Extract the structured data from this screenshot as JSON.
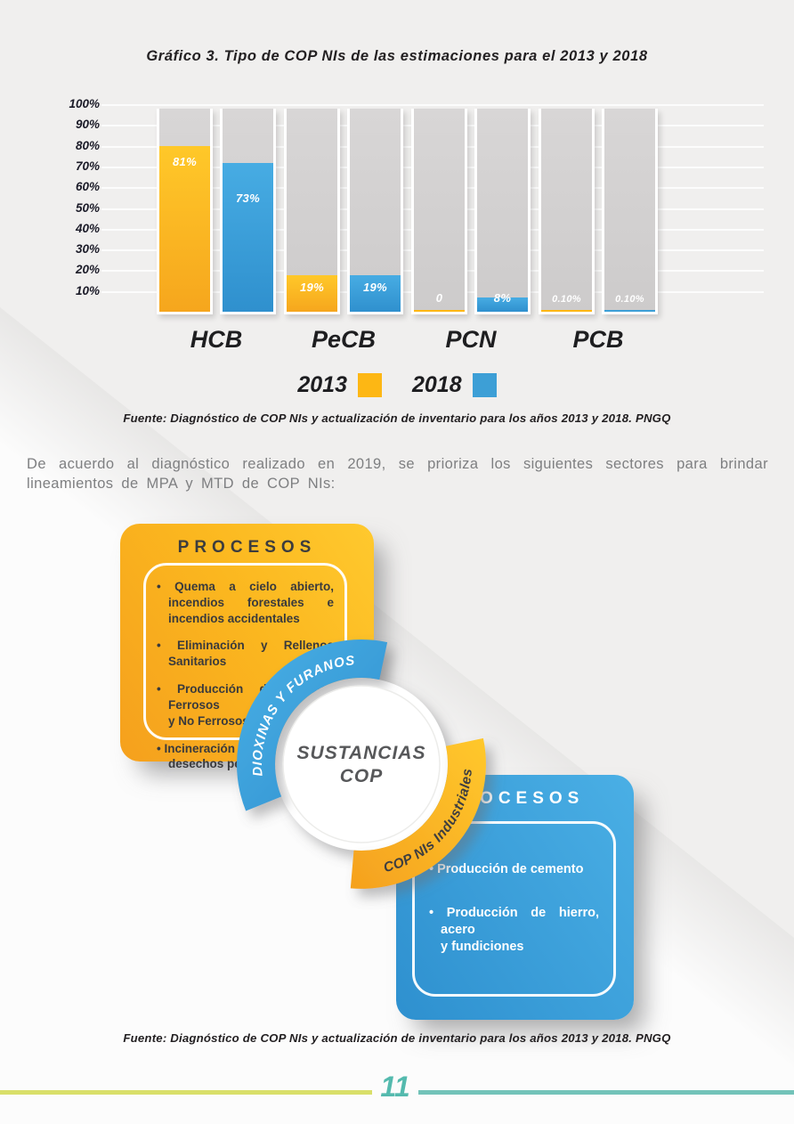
{
  "title": "Gráfico 3. Tipo de COP NIs de las estimaciones para el 2013 y 2018",
  "chart_data": {
    "type": "bar",
    "categories": [
      "HCB",
      "PeCB",
      "PCN",
      "PCB"
    ],
    "series": [
      {
        "name": "2013",
        "color": "#FDB714",
        "values": [
          81,
          19,
          0,
          0.1
        ],
        "labels": [
          "81%",
          "19%",
          "0",
          "0.10%"
        ],
        "label_dy": [
          10,
          6,
          -1,
          -1
        ]
      },
      {
        "name": "2018",
        "color": "#3D9FD6",
        "values": [
          73,
          19,
          8,
          0.1
        ],
        "labels": [
          "73%",
          "19%",
          "8%",
          "0.10%"
        ],
        "label_dy": [
          32,
          6,
          -1,
          -1
        ]
      }
    ],
    "y_ticks": [
      "100%",
      "90%",
      "80%",
      "70%",
      "60%",
      "50%",
      "40%",
      "30%",
      "20%",
      "10%"
    ],
    "ylim": [
      0,
      100
    ],
    "grid": "horizontal",
    "legend_position": "below",
    "backdrop_bar_color": "#D3D1D1"
  },
  "source_chart": "Fuente: Diagnóstico de COP NIs y actualización de inventario para los años 2013 y 2018. PNGQ",
  "paragraph": "De acuerdo al diagnóstico realizado en 2019, se prioriza los siguientes sectores para brindar lineamientos de MPA y MTD de COP NIs:",
  "diagram": {
    "center_line1": "SUSTANCIAS",
    "center_line2": "COP",
    "arc_blue_label": "DIOXINAS Y FURANOS",
    "arc_yellow_label": "COP NIs Industriales",
    "arc_blue_color": "#3EA0DB",
    "arc_yellow_color": "#FDB714",
    "yellow_box": {
      "title": "PROCESOS",
      "items": [
        "Quema a cielo abierto, incendios forestales e incendios accidentales",
        "Eliminación y Rellenos Sanitarios",
        "Producción de Metales Ferrosos\ny No Ferrosos",
        "Incineración de\ndesechos peligrosos"
      ]
    },
    "blue_box": {
      "title": "PROCESOS",
      "items": [
        "Producción de cemento",
        "Producción de hierro, acero\ny fundiciones"
      ]
    }
  },
  "source_diagram": "Fuente: Diagnóstico de COP NIs y actualización de inventario para los años 2013 y 2018. PNGQ",
  "footer": {
    "page_number": "11",
    "left_line_color": "#D9DF6A",
    "right_line_color": "#73C3B9"
  }
}
